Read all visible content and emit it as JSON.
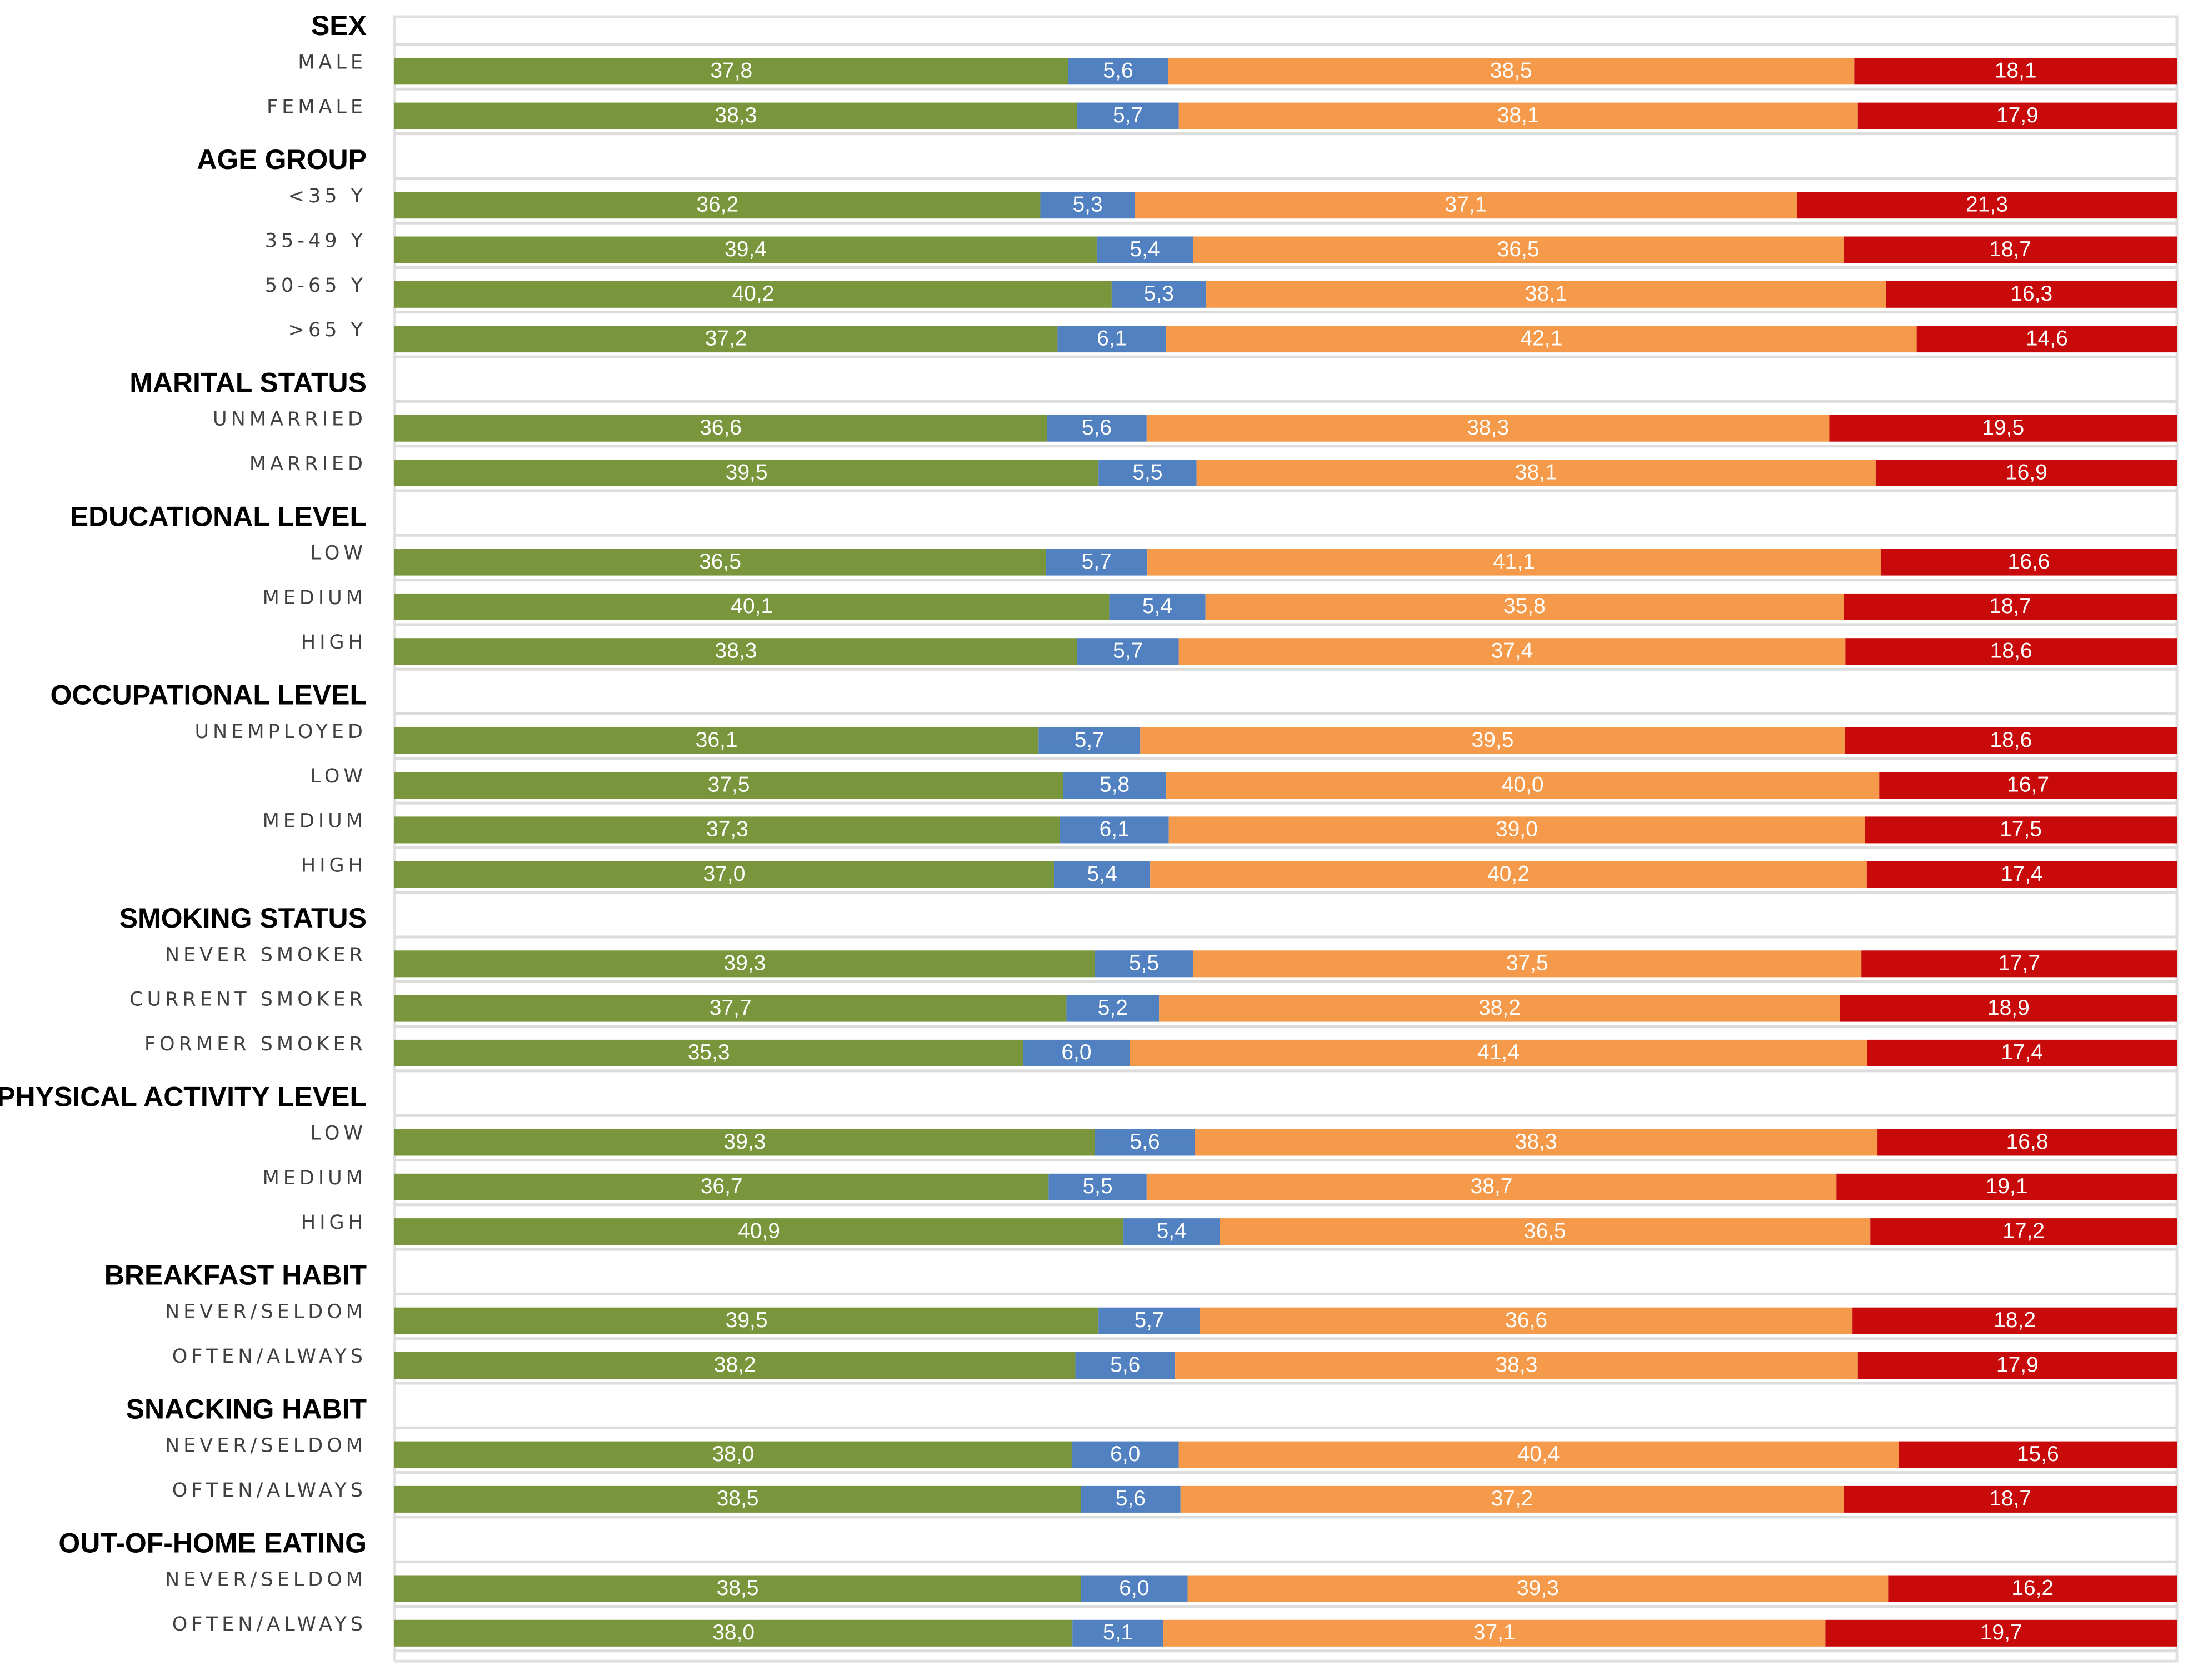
{
  "chart_data": {
    "type": "bar",
    "orientation": "horizontal",
    "stacking": "percent",
    "xlim": [
      0,
      100
    ],
    "grid": false,
    "legend": "none",
    "title": "",
    "series_colors": [
      "#7a963c",
      "#5181c0",
      "#f59a4a",
      "#c80a0a"
    ],
    "groups": [
      {
        "name": "SEX",
        "rows": [
          {
            "label": "MALE",
            "values": [
              "37,8",
              "5,6",
              "38,5",
              "18,1"
            ]
          },
          {
            "label": "FEMALE",
            "values": [
              "38,3",
              "5,7",
              "38,1",
              "17,9"
            ]
          }
        ]
      },
      {
        "name": "AGE GROUP",
        "rows": [
          {
            "label": "<35 Y",
            "values": [
              "36,2",
              "5,3",
              "37,1",
              "21,3"
            ]
          },
          {
            "label": "35-49 Y",
            "values": [
              "39,4",
              "5,4",
              "36,5",
              "18,7"
            ]
          },
          {
            "label": "50-65 Y",
            "values": [
              "40,2",
              "5,3",
              "38,1",
              "16,3"
            ]
          },
          {
            "label": ">65 Y",
            "values": [
              "37,2",
              "6,1",
              "42,1",
              "14,6"
            ]
          }
        ]
      },
      {
        "name": "MARITAL STATUS",
        "rows": [
          {
            "label": "UNMARRIED",
            "values": [
              "36,6",
              "5,6",
              "38,3",
              "19,5"
            ]
          },
          {
            "label": "MARRIED",
            "values": [
              "39,5",
              "5,5",
              "38,1",
              "16,9"
            ]
          }
        ]
      },
      {
        "name": "EDUCATIONAL LEVEL",
        "rows": [
          {
            "label": "LOW",
            "values": [
              "36,5",
              "5,7",
              "41,1",
              "16,6"
            ]
          },
          {
            "label": "MEDIUM",
            "values": [
              "40,1",
              "5,4",
              "35,8",
              "18,7"
            ]
          },
          {
            "label": "HIGH",
            "values": [
              "38,3",
              "5,7",
              "37,4",
              "18,6"
            ]
          }
        ]
      },
      {
        "name": "OCCUPATIONAL LEVEL",
        "rows": [
          {
            "label": "UNEMPLOYED",
            "values": [
              "36,1",
              "5,7",
              "39,5",
              "18,6"
            ]
          },
          {
            "label": "LOW",
            "values": [
              "37,5",
              "5,8",
              "40,0",
              "16,7"
            ]
          },
          {
            "label": "MEDIUM",
            "values": [
              "37,3",
              "6,1",
              "39,0",
              "17,5"
            ]
          },
          {
            "label": "HIGH",
            "values": [
              "37,0",
              "5,4",
              "40,2",
              "17,4"
            ]
          }
        ]
      },
      {
        "name": "SMOKING STATUS",
        "rows": [
          {
            "label": "NEVER SMOKER",
            "values": [
              "39,3",
              "5,5",
              "37,5",
              "17,7"
            ]
          },
          {
            "label": "CURRENT SMOKER",
            "values": [
              "37,7",
              "5,2",
              "38,2",
              "18,9"
            ]
          },
          {
            "label": "FORMER SMOKER",
            "values": [
              "35,3",
              "6,0",
              "41,4",
              "17,4"
            ]
          }
        ]
      },
      {
        "name": "PHYSICAL ACTIVITY LEVEL",
        "rows": [
          {
            "label": "LOW",
            "values": [
              "39,3",
              "5,6",
              "38,3",
              "16,8"
            ]
          },
          {
            "label": "MEDIUM",
            "values": [
              "36,7",
              "5,5",
              "38,7",
              "19,1"
            ]
          },
          {
            "label": "HIGH",
            "values": [
              "40,9",
              "5,4",
              "36,5",
              "17,2"
            ]
          }
        ]
      },
      {
        "name": "BREAKFAST HABIT",
        "rows": [
          {
            "label": "NEVER/SELDOM",
            "values": [
              "39,5",
              "5,7",
              "36,6",
              "18,2"
            ]
          },
          {
            "label": "OFTEN/ALWAYS",
            "values": [
              "38,2",
              "5,6",
              "38,3",
              "17,9"
            ]
          }
        ]
      },
      {
        "name": "SNACKING HABIT",
        "rows": [
          {
            "label": "NEVER/SELDOM",
            "values": [
              "38,0",
              "6,0",
              "40,4",
              "15,6"
            ]
          },
          {
            "label": "OFTEN/ALWAYS",
            "values": [
              "38,5",
              "5,6",
              "37,2",
              "18,7"
            ]
          }
        ]
      },
      {
        "name": "OUT-OF-HOME EATING",
        "rows": [
          {
            "label": "NEVER/SELDOM",
            "values": [
              "38,5",
              "6,0",
              "39,3",
              "16,2"
            ]
          },
          {
            "label": "OFTEN/ALWAYS",
            "values": [
              "38,0",
              "5,1",
              "37,1",
              "19,7"
            ]
          }
        ]
      }
    ]
  }
}
